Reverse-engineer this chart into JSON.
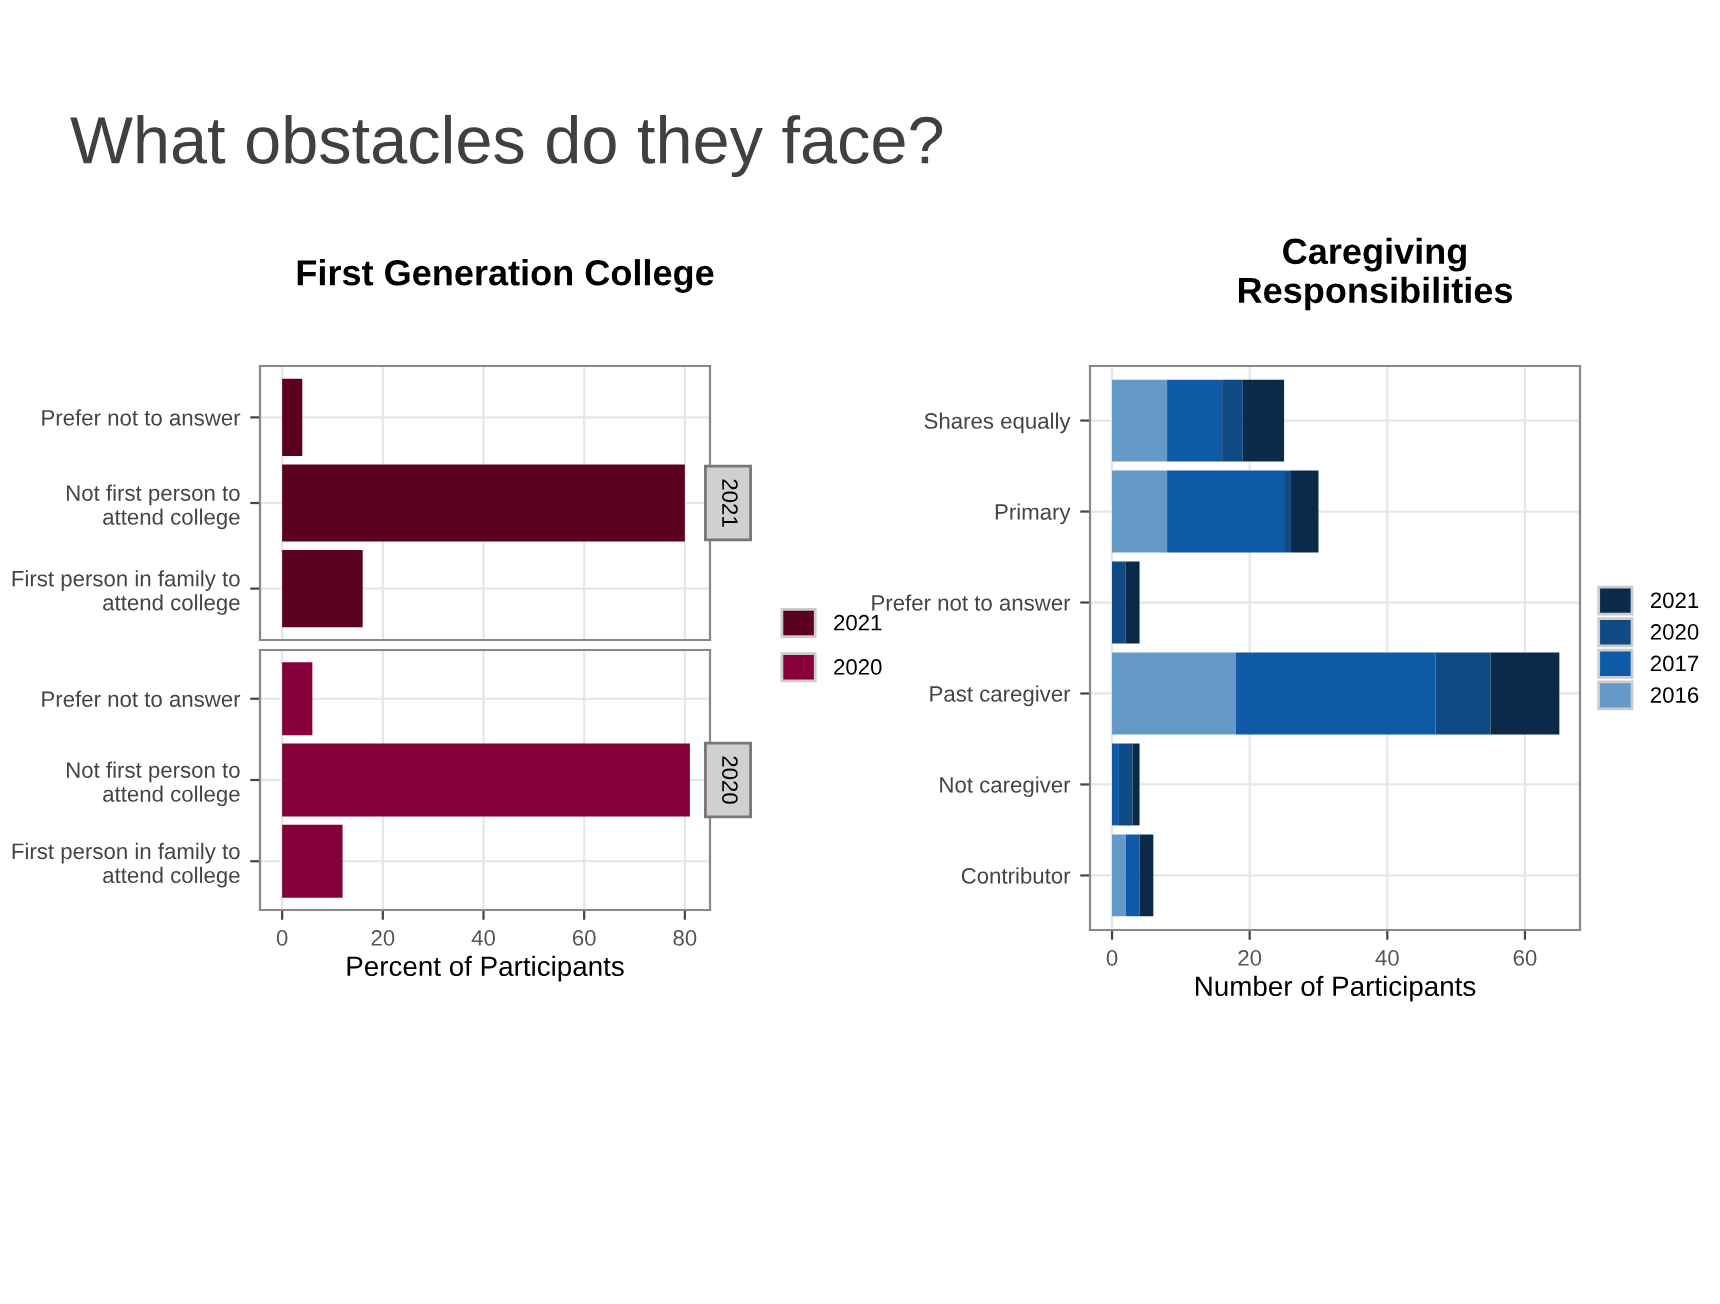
{
  "chart_data": [
    {
      "type": "bar",
      "orientation": "horizontal",
      "title": "What obstacles do they face?",
      "subtitle": "First Generation College",
      "categories": [
        "Prefer not to answer",
        "Not first person to\nattend college",
        "First person in family to\nattend college"
      ],
      "series": [
        {
          "name": "2021",
          "color": "#5a0020",
          "values": [
            4,
            80,
            16
          ]
        }
      ],
      "annotations": [
        "2021"
      ],
      "xlim": [
        -4.4,
        85
      ],
      "xticks": [
        0,
        20,
        40,
        60,
        80
      ],
      "tick_labels": "y",
      "grid": true,
      "legend": "bottom right"
    },
    {
      "type": "bar",
      "orientation": "horizontal",
      "categories": [
        "Prefer not to answer",
        "Not first person to\nattend college",
        "First person in family to\nattend college"
      ],
      "series": [
        {
          "name": "2020",
          "color": "#85003a",
          "values": [
            6,
            81,
            12
          ]
        }
      ],
      "annotations": [
        "2020"
      ],
      "xlim": [
        -4.4,
        85
      ],
      "xticks": [
        0,
        20,
        40,
        60,
        80
      ],
      "xlabel": "Percent of Participants",
      "grid": true,
      "legend": "top right"
    },
    {
      "type": "bar",
      "orientation": "horizontal",
      "stacked": true,
      "title": "Caregiving\nResponsibilities",
      "categories": [
        "Shares equally",
        "Primary",
        "Prefer not to answer",
        "Past caregiver",
        "Not caregiver",
        "Contributor"
      ],
      "series": [
        {
          "name": "2016",
          "color": "#6499c8",
          "values": [
            8,
            8,
            0,
            18,
            0,
            2
          ]
        },
        {
          "name": "2017",
          "color": "#0e5aa6",
          "values": [
            8,
            17,
            0,
            29,
            1,
            2
          ]
        },
        {
          "name": "2020",
          "color": "#0f4a85",
          "values": [
            3,
            1,
            2,
            8,
            2,
            0
          ]
        },
        {
          "name": "2021",
          "color": "#0b2a4a",
          "values": [
            6,
            4,
            2,
            10,
            1,
            2
          ]
        }
      ],
      "xlim": [
        -3.2,
        68
      ],
      "xticks": [
        0,
        20,
        40,
        60
      ],
      "xlabel": "Number of Participants",
      "grid": true,
      "legend": "right"
    }
  ]
}
